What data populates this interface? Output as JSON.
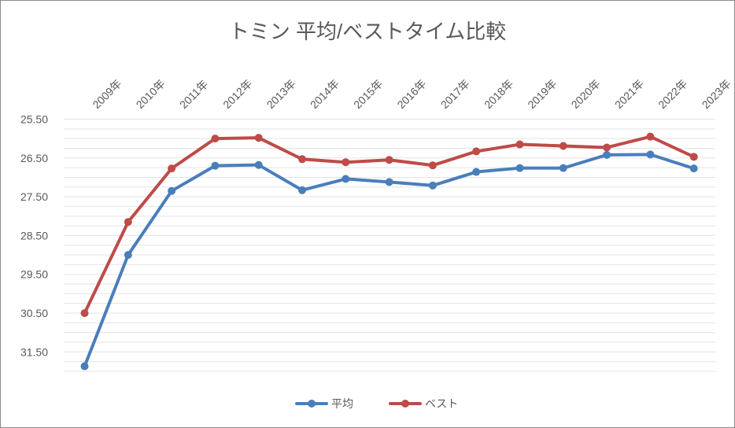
{
  "chart_data": {
    "type": "line",
    "title": "トミン 平均/ベストタイム比較",
    "xlabel": "",
    "ylabel": "",
    "y_reversed": true,
    "ylim": [
      25.5,
      32.0
    ],
    "y_ticks": [
      "25.50",
      "26.50",
      "27.50",
      "28.50",
      "29.50",
      "30.50",
      "31.50"
    ],
    "categories": [
      "2009年",
      "2010年",
      "2011年",
      "2012年",
      "2013年",
      "2014年",
      "2015年",
      "2016年",
      "2017年",
      "2018年",
      "2019年",
      "2020年",
      "2021年",
      "2022年",
      "2023年"
    ],
    "x_label_position": "top",
    "grid": true,
    "legend_position": "bottom",
    "series": [
      {
        "name": "平均",
        "color": "#4a7ebb",
        "values": [
          31.87,
          29.0,
          27.35,
          26.7,
          26.68,
          27.33,
          27.04,
          27.12,
          27.21,
          26.86,
          26.76,
          26.76,
          26.42,
          26.41,
          26.77
        ]
      },
      {
        "name": "ベスト",
        "color": "#be4b48",
        "values": [
          30.5,
          28.15,
          26.77,
          26.0,
          25.98,
          26.53,
          26.61,
          26.55,
          26.69,
          26.33,
          26.15,
          26.19,
          26.23,
          25.95,
          26.47
        ]
      }
    ]
  }
}
